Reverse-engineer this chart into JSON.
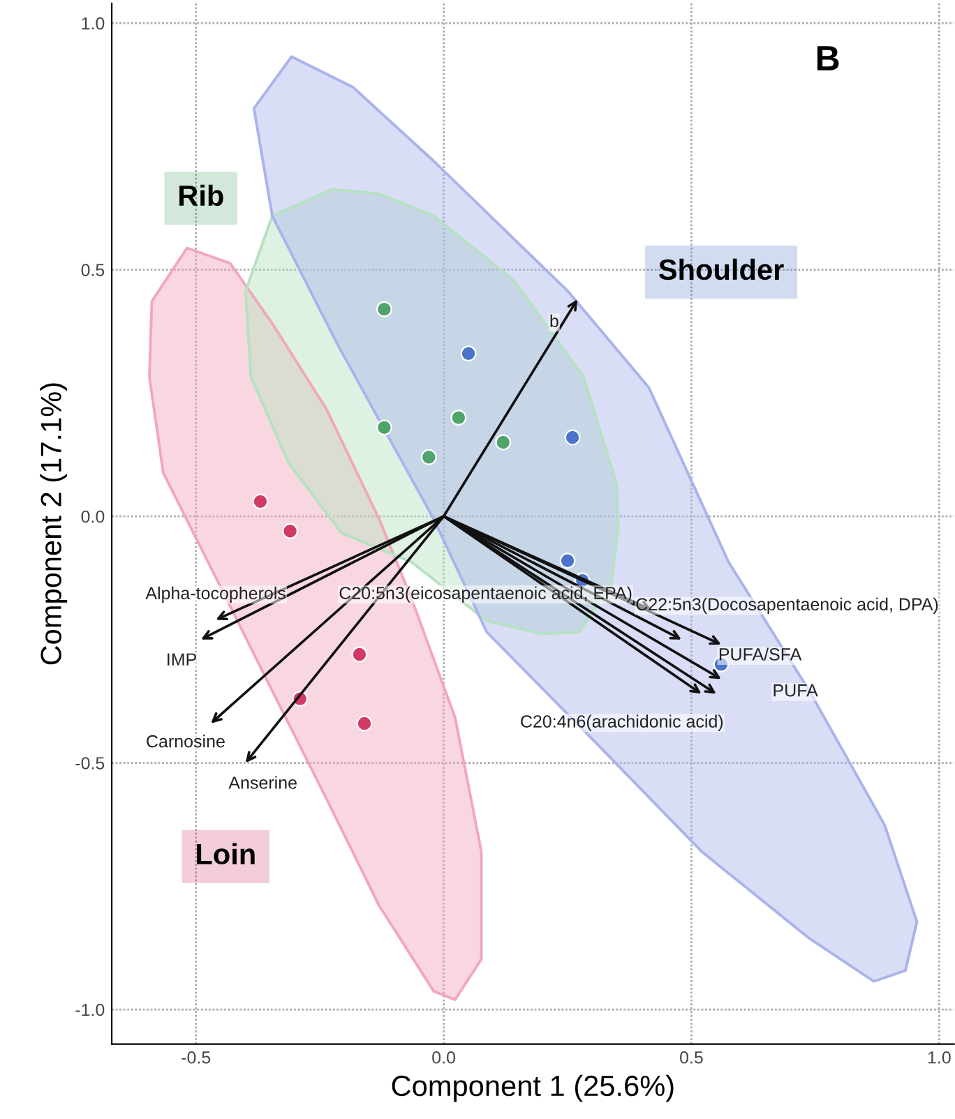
{
  "chart_data": {
    "type": "scatter",
    "xlabel": "Component 1 (25.6%)",
    "ylabel": "Component 2 (17.1%)",
    "annotations": [
      "B",
      "b",
      "Alpha-tocopherols",
      "IMP",
      "Carnosine",
      "Anserine",
      "C20:5n3(eicosapentaenoic acid, EPA)",
      "C22:5n3(Docosapentaenoic acid, DPA)",
      "PUFA/SFA",
      "PUFA",
      "C20:4n6(arachidonic acid)"
    ],
    "xlim": [
      -0.67,
      1.03
    ],
    "ylim": [
      -1.07,
      1.04
    ],
    "xticks": [
      {
        "value": -0.5,
        "label": "-0.5"
      },
      {
        "value": 0,
        "label": "0.0"
      },
      {
        "value": 0.5,
        "label": "0.5"
      },
      {
        "value": 1,
        "label": "1.0"
      }
    ],
    "yticks": [
      {
        "value": -1,
        "label": "-1.0"
      },
      {
        "value": -0.5,
        "label": "-0.5"
      },
      {
        "value": 0,
        "label": "0.0"
      },
      {
        "value": 0.5,
        "label": "0.5"
      },
      {
        "value": 1,
        "label": "1.0"
      }
    ],
    "grid": true,
    "marker": "circle",
    "series": [
      {
        "type": "area",
        "marker": "none",
        "color": "#f2a7bd",
        "x": [
          -0.518,
          -0.589,
          -0.594,
          -0.566,
          -0.454,
          -0.346,
          -0.237,
          -0.13,
          -0.02,
          0.023,
          0.076,
          0.076,
          0.023,
          -0.065,
          -0.13,
          -0.237,
          -0.346,
          -0.431
        ],
        "values": [
          0.544,
          0.436,
          0.283,
          0.088,
          -0.136,
          -0.354,
          -0.572,
          -0.79,
          -0.963,
          -0.98,
          -0.898,
          -0.68,
          -0.408,
          -0.167,
          -0.006,
          0.218,
          0.391,
          0.513
        ]
      },
      {
        "type": "area",
        "marker": "none",
        "color": "#b5e2c0",
        "x": [
          -0.225,
          -0.346,
          -0.4,
          -0.389,
          -0.313,
          -0.206,
          -0.065,
          0.087,
          0.197,
          0.273,
          0.338,
          0.352,
          0.349,
          0.282,
          0.141,
          -0.02,
          -0.13
        ],
        "values": [
          0.663,
          0.609,
          0.456,
          0.283,
          0.108,
          -0.034,
          -0.093,
          -0.212,
          -0.238,
          -0.235,
          -0.136,
          -0.025,
          0.065,
          0.283,
          0.479,
          0.609,
          0.654
        ]
      },
      {
        "type": "area",
        "marker": "none",
        "color": "#aab3ea",
        "x": [
          -0.307,
          -0.383,
          -0.346,
          -0.214,
          -0.02,
          0.087,
          0.304,
          0.521,
          0.738,
          0.868,
          0.932,
          0.955,
          0.89,
          0.738,
          0.575,
          0.414,
          0.251,
          -0.02,
          -0.183
        ],
        "values": [
          0.932,
          0.827,
          0.609,
          0.348,
          -0.006,
          -0.235,
          -0.456,
          -0.68,
          -0.856,
          -0.943,
          -0.921,
          -0.822,
          -0.626,
          -0.354,
          -0.093,
          0.261,
          0.456,
          0.72,
          0.87
        ]
      },
      {
        "name": "Loin",
        "color": "#d03a64",
        "x": [
          -0.37,
          -0.31,
          -0.17,
          -0.29,
          -0.16
        ],
        "values": [
          0.03,
          -0.03,
          -0.28,
          -0.37,
          -0.42
        ]
      },
      {
        "name": "Rib",
        "color": "#4fa36b",
        "x": [
          -0.12,
          -0.12,
          0.03,
          -0.03,
          0.12
        ],
        "values": [
          0.42,
          0.18,
          0.2,
          0.12,
          0.15
        ]
      },
      {
        "name": "Shoulder",
        "color": "#4a74c9",
        "x": [
          0.05,
          0.26,
          0.25,
          0.28,
          0.56
        ],
        "values": [
          0.33,
          0.16,
          -0.09,
          -0.13,
          -0.3
        ]
      }
    ]
  }
}
